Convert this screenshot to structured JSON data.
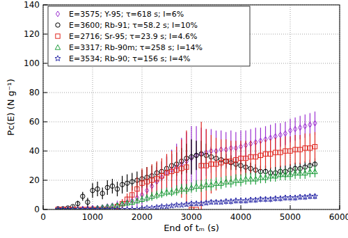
{
  "chart_data": {
    "type": "scatter",
    "x_label": "End of tₘ (s)",
    "y_label": "Pᴄ(E) (N g⁻¹)",
    "xlim": [
      0,
      6000
    ],
    "xticks": [
      0,
      1000,
      2000,
      3000,
      4000,
      5000,
      6000
    ],
    "ylim": [
      0,
      140
    ],
    "yticks": [
      0,
      20,
      40,
      60,
      80,
      100,
      120,
      140
    ],
    "grid": true,
    "legend": "upper left",
    "x": [
      300,
      400,
      500,
      600,
      700,
      800,
      900,
      1000,
      1100,
      1200,
      1300,
      1400,
      1500,
      1600,
      1700,
      1800,
      1900,
      2000,
      2100,
      2200,
      2300,
      2400,
      2500,
      2600,
      2700,
      2800,
      2900,
      3000,
      3100,
      3200,
      3300,
      3400,
      3500,
      3600,
      3700,
      3800,
      3900,
      4000,
      4100,
      4200,
      4300,
      4400,
      4500,
      4600,
      4700,
      4800,
      4900,
      5000,
      5100,
      5200,
      5300,
      5400,
      5500
    ],
    "series": [
      {
        "name": "E=3575; Y-95; τ=618 s; I=6%",
        "color": "#9b30d0",
        "marker": "diamond",
        "values": [
          0,
          0,
          0,
          0,
          0,
          0.5,
          0.5,
          1,
          1,
          1.5,
          2,
          2.5,
          3,
          4,
          5,
          6,
          8,
          10,
          13,
          16,
          19,
          22,
          25,
          27,
          29,
          31,
          33,
          35,
          37,
          38,
          39,
          40,
          40,
          41,
          41,
          42,
          42,
          43,
          44,
          45,
          46,
          47,
          48,
          49,
          50,
          51,
          52,
          54,
          55,
          56,
          57,
          58,
          59
        ],
        "errors": [
          0.5,
          0.5,
          0.5,
          0.5,
          0.5,
          1,
          1,
          1,
          1.5,
          1.5,
          2,
          2,
          3,
          3,
          4,
          5,
          6,
          7,
          8,
          9,
          10,
          11,
          12,
          14,
          16,
          18,
          20,
          22,
          20,
          18,
          16,
          15,
          14,
          13,
          12,
          12,
          11,
          11,
          10,
          10,
          10,
          9,
          9,
          9,
          9,
          8,
          8,
          8,
          8,
          8,
          8,
          8,
          8
        ]
      },
      {
        "name": "E=3600; Rb-91; τ=58.2 s; I=10%",
        "color": "#000000",
        "marker": "circle",
        "values": [
          0.5,
          0.5,
          1,
          2,
          4,
          9,
          5,
          13,
          14,
          11,
          15,
          16,
          14,
          17,
          18,
          19,
          20,
          21,
          22,
          23,
          25,
          26,
          28,
          30,
          31,
          33,
          35,
          36,
          37,
          38,
          37,
          36,
          35,
          34,
          33,
          32,
          31,
          30,
          29,
          28,
          27,
          26,
          26,
          25,
          25,
          26,
          26,
          27,
          28,
          28,
          29,
          30,
          31
        ],
        "errors": [
          0.5,
          0.5,
          1,
          1,
          2,
          3,
          3,
          5,
          5,
          4,
          5,
          5,
          5,
          6,
          6,
          6,
          6,
          6,
          7,
          7,
          7,
          7,
          8,
          8,
          8,
          9,
          10,
          12,
          10,
          9,
          8,
          7,
          6,
          5,
          5,
          5,
          4,
          4,
          4,
          4,
          4,
          4,
          4,
          4,
          4,
          4,
          4,
          4,
          4,
          4,
          4,
          4,
          4
        ]
      },
      {
        "name": "E=2716; Sr-95; τ=23.9 s; I=4.6%",
        "color": "#e0261e",
        "marker": "square",
        "values": [
          0,
          0,
          0,
          0,
          0,
          0,
          0,
          0,
          0,
          0,
          0,
          0,
          2,
          4,
          7,
          10,
          14,
          18,
          19,
          20,
          21,
          23,
          25,
          26,
          27,
          28,
          29,
          0,
          0,
          30,
          30,
          31,
          31,
          32,
          33,
          33,
          34,
          35,
          35,
          36,
          36,
          37,
          38,
          38,
          39,
          39,
          40,
          40,
          41,
          41,
          42,
          42,
          43
        ],
        "errors": [
          0.5,
          0.5,
          0.5,
          0.5,
          0.5,
          0.5,
          0.5,
          0.5,
          0.5,
          0.5,
          0.5,
          0.5,
          2,
          3,
          4,
          6,
          8,
          10,
          10,
          11,
          12,
          12,
          13,
          14,
          16,
          20,
          25,
          0.5,
          0.5,
          30,
          25,
          20,
          18,
          16,
          15,
          14,
          13,
          12,
          12,
          11,
          11,
          10,
          10,
          10,
          10,
          10,
          10,
          10,
          10,
          10,
          10,
          10,
          10
        ]
      },
      {
        "name": "E=3317; Rb-90m; τ=258 s; I=14%",
        "color": "#1e9e3c",
        "marker": "triangle",
        "values": [
          0,
          0,
          0,
          0,
          0,
          0,
          0,
          0.5,
          1,
          1.5,
          2,
          2.5,
          3,
          4,
          4.5,
          5,
          6,
          7,
          8,
          9,
          10,
          11,
          12,
          12,
          13,
          14,
          14,
          15,
          16,
          16,
          17,
          17,
          18,
          18,
          19,
          19,
          20,
          20,
          21,
          21,
          21,
          22,
          22,
          23,
          23,
          24,
          24,
          24,
          25,
          25,
          25,
          26,
          26
        ],
        "errors": [
          0.3,
          0.3,
          0.3,
          0.3,
          0.3,
          0.3,
          0.3,
          0.5,
          0.5,
          1,
          1,
          1,
          1.5,
          1.5,
          2,
          2,
          2,
          2.5,
          2.5,
          3,
          3,
          3,
          3,
          3,
          3.5,
          3.5,
          3.5,
          3.5,
          4,
          4,
          4,
          4,
          4,
          4,
          4,
          4,
          4,
          4,
          4,
          4,
          4,
          4,
          4,
          4,
          4,
          4,
          4,
          4,
          4,
          4,
          4,
          4,
          4
        ]
      },
      {
        "name": "E=3534; Rb-90; τ=156 s; I=4%",
        "color": "#2a2aa8",
        "marker": "star",
        "values": [
          0,
          0,
          0,
          0,
          0,
          0,
          0,
          0,
          0,
          0,
          0,
          0,
          0,
          0,
          0,
          0,
          0,
          0.5,
          1,
          1,
          1.5,
          2,
          2,
          2.5,
          3,
          3,
          3.5,
          4,
          4,
          4,
          4.5,
          5,
          5,
          5,
          5.5,
          5.5,
          6,
          6,
          6,
          6.5,
          6.5,
          7,
          7,
          7,
          7.5,
          7.5,
          8,
          8,
          8,
          8.5,
          8.5,
          9,
          9
        ],
        "errors": [
          0.3,
          0.3,
          0.3,
          0.3,
          0.3,
          0.3,
          0.3,
          0.3,
          0.3,
          0.3,
          0.3,
          0.3,
          0.3,
          0.3,
          0.3,
          0.3,
          0.3,
          0.5,
          0.5,
          0.5,
          1,
          1,
          1,
          1,
          1,
          1,
          1.5,
          1.5,
          1.5,
          1.5,
          1.5,
          1.5,
          1.5,
          1.5,
          2,
          2,
          2,
          2,
          2,
          2,
          2,
          2,
          2,
          2,
          2,
          2,
          2,
          2,
          2,
          2,
          2,
          2,
          2
        ]
      }
    ]
  }
}
